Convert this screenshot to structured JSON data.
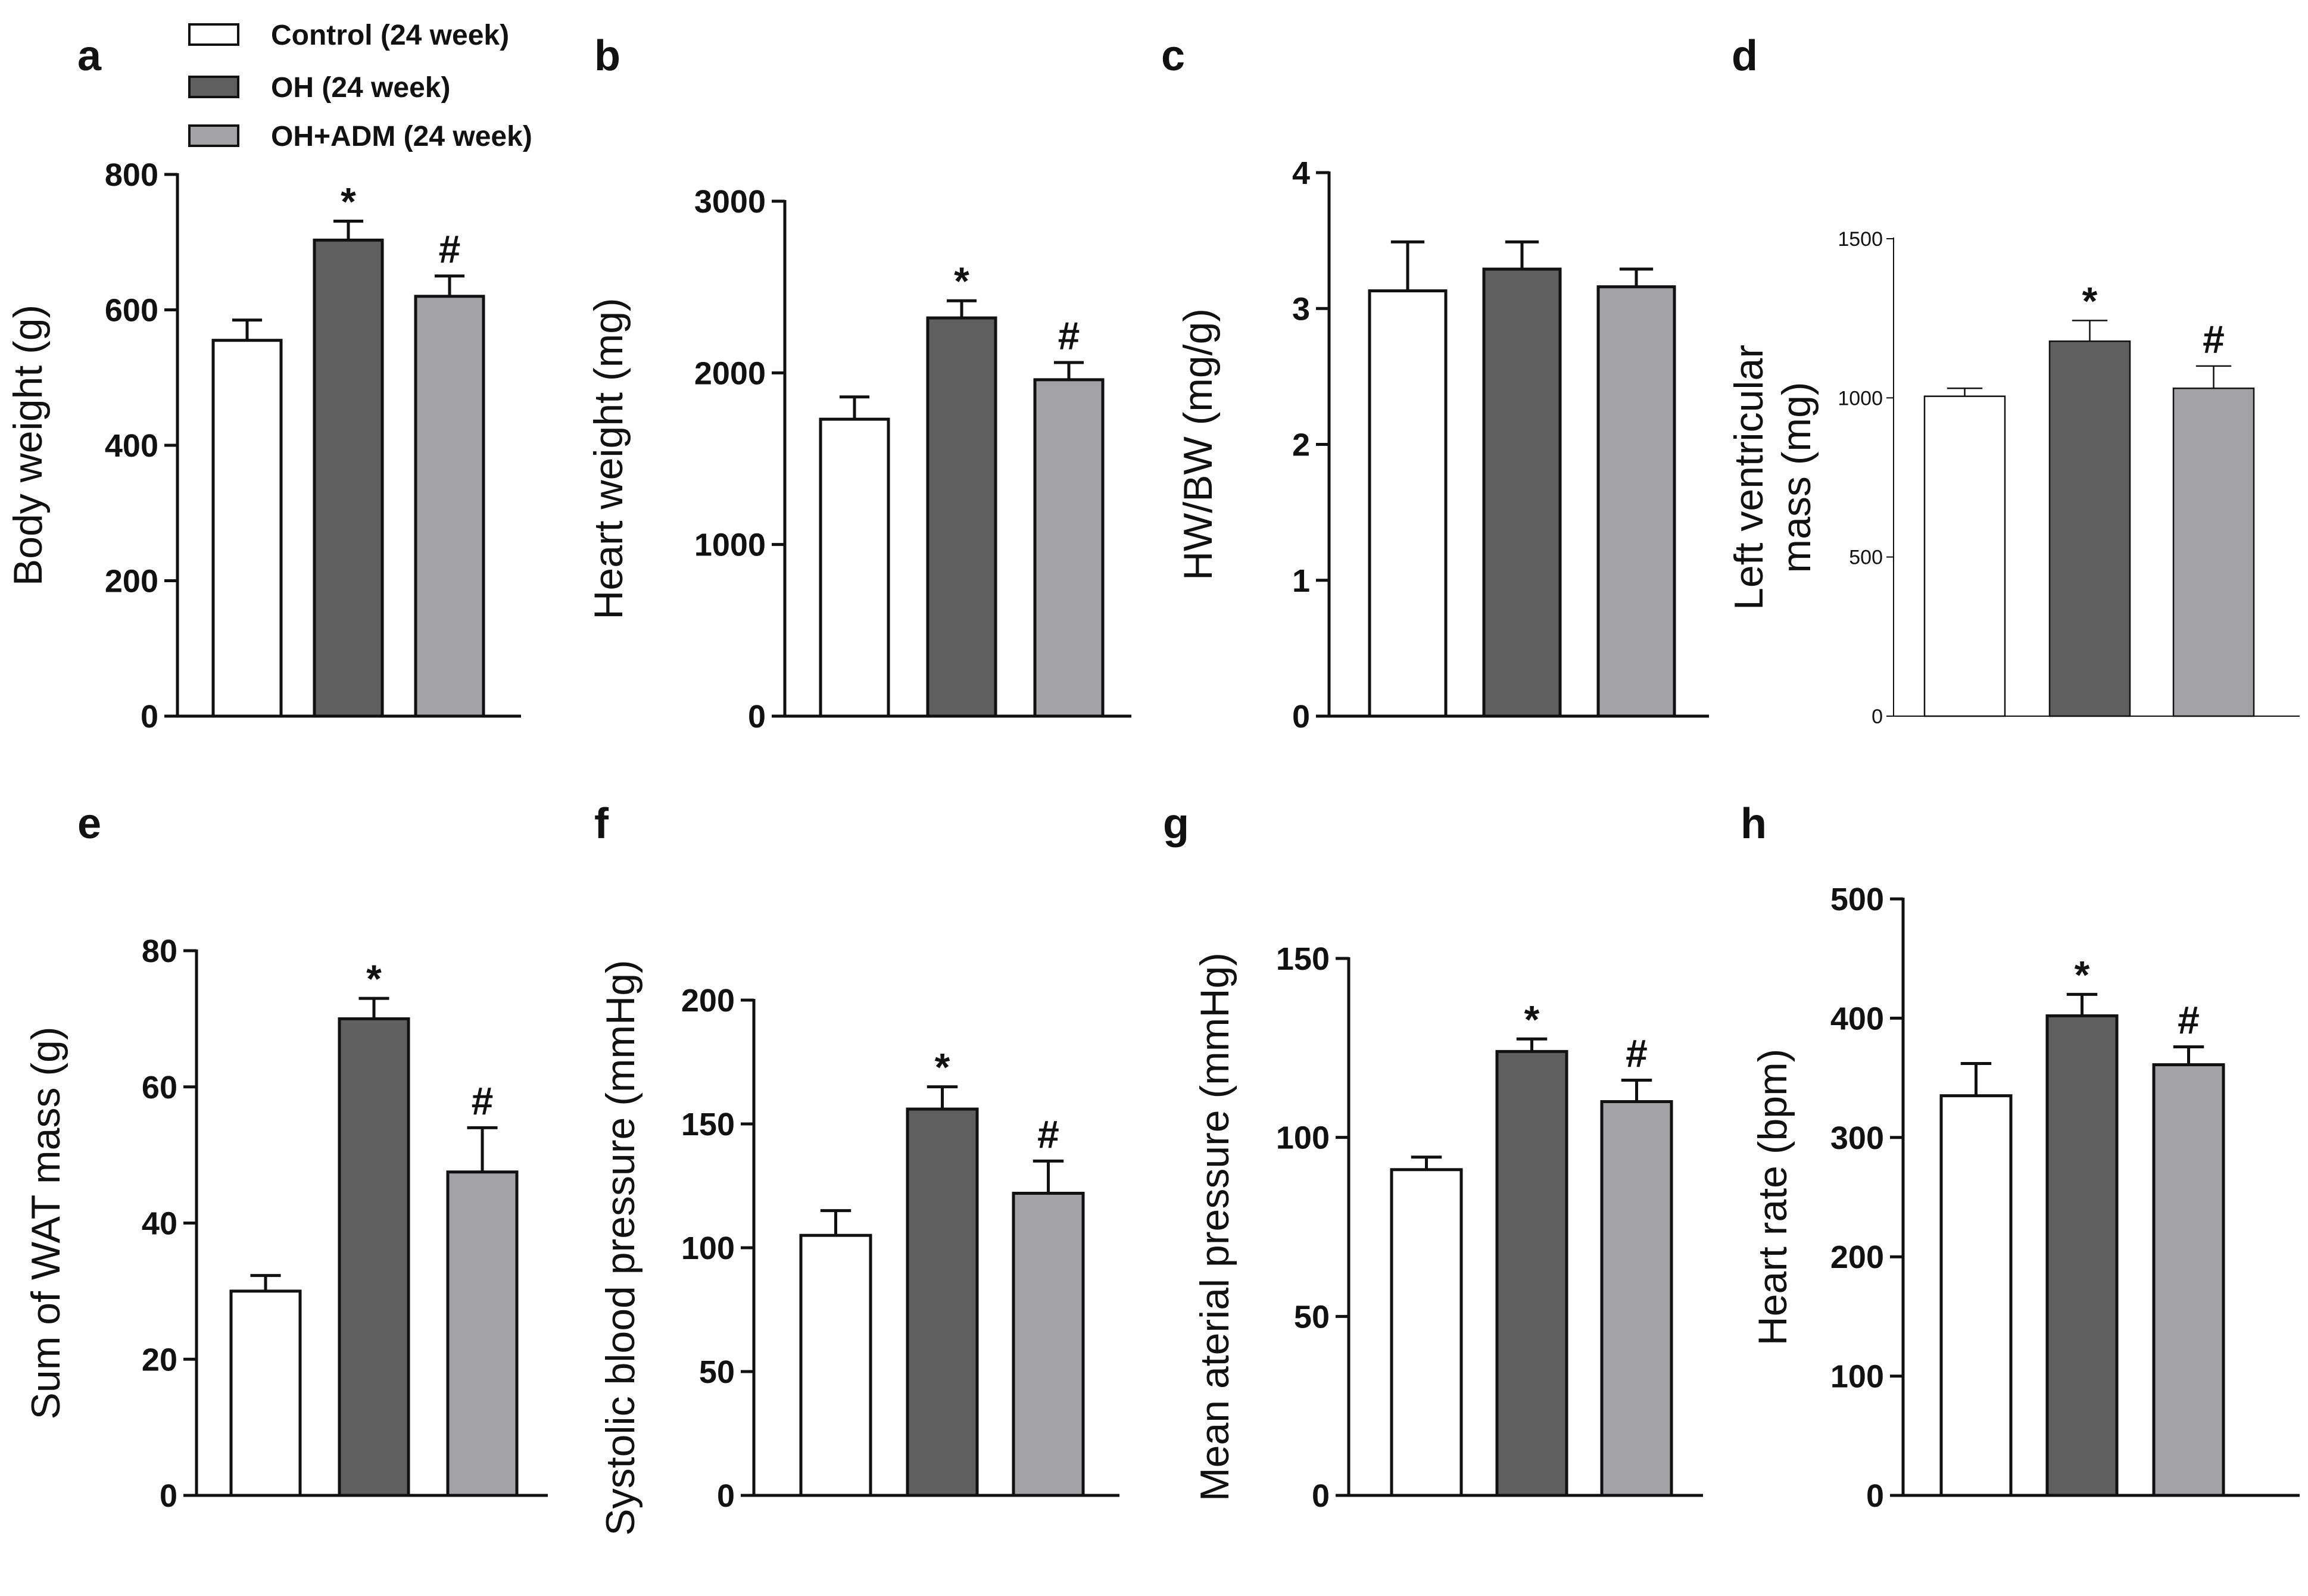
{
  "colors": {
    "control": "#ffffff",
    "oh": "#5f5f5f",
    "oh_adm": "#a3a3a6",
    "axis": "#111111"
  },
  "legend": [
    {
      "label": "Control (24 week)",
      "color_key": "control"
    },
    {
      "label": "OH (24 week)",
      "color_key": "oh"
    },
    {
      "label": "OH+ADM (24 week)",
      "color_key": "oh_adm"
    }
  ],
  "chart_data": [
    {
      "panel": "a",
      "type": "bar",
      "ylabel": "Body weight (g)",
      "ylim": [
        0,
        800
      ],
      "yticks": [
        0,
        200,
        400,
        600,
        800
      ],
      "categories": [
        "Control (24 week)",
        "OH (24 week)",
        "OH+ADM (24 week)"
      ],
      "values": [
        555,
        703,
        620
      ],
      "errors": [
        30,
        28,
        30
      ],
      "significance": [
        "",
        "*",
        "#"
      ]
    },
    {
      "panel": "b",
      "type": "bar",
      "ylabel": "Heart weight (mg)",
      "ylim": [
        0,
        3000
      ],
      "yticks": [
        0,
        1000,
        2000,
        3000
      ],
      "categories": [
        "Control (24 week)",
        "OH (24 week)",
        "OH+ADM (24 week)"
      ],
      "values": [
        1730,
        2320,
        1960
      ],
      "errors": [
        130,
        100,
        100
      ],
      "significance": [
        "",
        "*",
        "#"
      ]
    },
    {
      "panel": "c",
      "type": "bar",
      "ylabel": "HW/BW  (mg/g)",
      "ylim": [
        0,
        4
      ],
      "yticks": [
        0,
        1,
        2,
        3,
        4
      ],
      "categories": [
        "Control (24 week)",
        "OH (24 week)",
        "OH+ADM (24 week)"
      ],
      "values": [
        3.13,
        3.29,
        3.16
      ],
      "errors": [
        0.36,
        0.2,
        0.13
      ],
      "significance": [
        "",
        "",
        ""
      ]
    },
    {
      "panel": "d",
      "type": "bar",
      "ylabel": [
        "Left ventricular",
        "mass (mg)"
      ],
      "ylim": [
        0,
        1500
      ],
      "yticks": [
        0,
        500,
        1000,
        1500
      ],
      "categories": [
        "Control (24 week)",
        "OH (24 week)",
        "OH+ADM (24 week)"
      ],
      "values": [
        1005,
        1178,
        1030
      ],
      "errors": [
        25,
        65,
        70
      ],
      "significance": [
        "",
        "*",
        "#"
      ]
    },
    {
      "panel": "e",
      "type": "bar",
      "ylabel": "Sum of WAT mass (g)",
      "ylim": [
        0,
        80
      ],
      "yticks": [
        0,
        20,
        40,
        60,
        80
      ],
      "categories": [
        "Control (24 week)",
        "OH (24 week)",
        "OH+ADM (24 week)"
      ],
      "values": [
        30,
        70,
        47.5
      ],
      "errors": [
        2.3,
        3,
        6.5
      ],
      "significance": [
        "",
        "*",
        "#"
      ]
    },
    {
      "panel": "f",
      "type": "bar",
      "ylabel": "Systolic blood  pressure (mmHg)",
      "ylim": [
        0,
        200
      ],
      "yticks": [
        0,
        50,
        100,
        150,
        200
      ],
      "categories": [
        "Control (24 week)",
        "OH (24 week)",
        "OH+ADM (24 week)"
      ],
      "values": [
        105,
        156,
        122
      ],
      "errors": [
        10,
        9,
        13
      ],
      "significance": [
        "",
        "*",
        "#"
      ]
    },
    {
      "panel": "g",
      "type": "bar",
      "ylabel": "Mean aterial  pressure (mmHg)",
      "ylim": [
        0,
        150
      ],
      "yticks": [
        0,
        50,
        100,
        150
      ],
      "categories": [
        "Control (24 week)",
        "OH (24 week)",
        "OH+ADM (24 week)"
      ],
      "values": [
        91,
        124,
        110
      ],
      "errors": [
        3.5,
        3.5,
        6
      ],
      "significance": [
        "",
        "*",
        "#"
      ]
    },
    {
      "panel": "h",
      "type": "bar",
      "ylabel": "Heart rate (bpm)",
      "ylim": [
        0,
        500
      ],
      "yticks": [
        0,
        100,
        200,
        300,
        400,
        500
      ],
      "categories": [
        "Control (24 week)",
        "OH (24 week)",
        "OH+ADM (24 week)"
      ],
      "values": [
        335,
        402,
        361
      ],
      "errors": [
        27,
        18,
        15
      ],
      "significance": [
        "",
        "*",
        "#"
      ]
    }
  ]
}
